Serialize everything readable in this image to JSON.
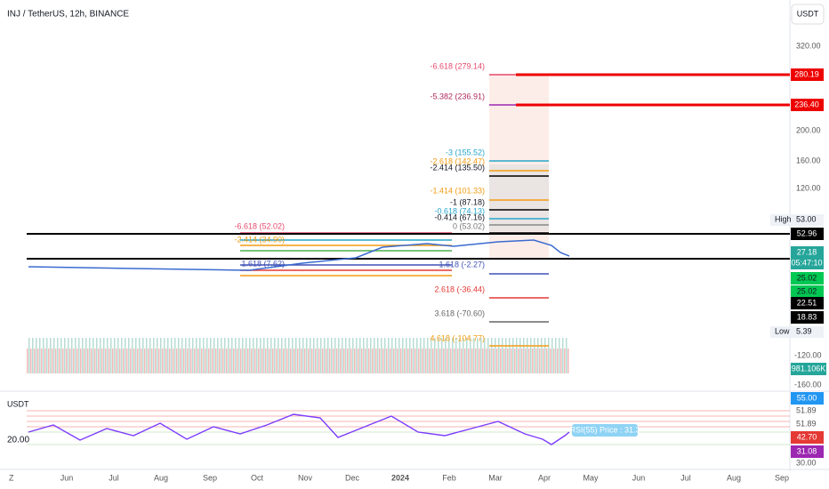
{
  "header": {
    "symbol": "INJ / TetherUS, 12h, BINANCE",
    "currency": "USDT"
  },
  "price_axis": [
    "320.00",
    "200.00",
    "160.00",
    "120.00",
    "-120.00",
    "-160.00"
  ],
  "badges": {
    "b280": "280.19",
    "b236": "236.40",
    "high_label": "High",
    "high": "53.00",
    "b5296": "52.96",
    "last": "27.18",
    "countdown": "05:47:10",
    "g1": "25.02",
    "g2": "25.02",
    "b2251": "22.51",
    "b1883": "18.83",
    "low_label": "Low",
    "low": "5.39",
    "volume": "981.106K"
  },
  "fib_labels": [
    "-6.618 (279.14)",
    "-5.382 (236.91)",
    "-3 (155.52)",
    "-2.618 (142.47)",
    "-2.414 (135.50)",
    "-1.414 (101.33)",
    "-1 (87.18)",
    "-0.618 (74.13)",
    "-0.414 (67.16)",
    "0 (53.02)",
    "1.618 (-2.27)",
    "2.618 (-36.44)",
    "3.618 (-70.60)",
    "4.618 (-104.77)"
  ],
  "left_fib_labels": [
    "-6.618 (52.02)",
    "-2.414 (34.90)",
    "1.618 (7.62)"
  ],
  "rsi": {
    "currency": "USDT",
    "left_tick": "20.00",
    "label": "RSI(55) Price : 31.3",
    "axis": [
      "55.00",
      "51.89",
      "51.89",
      "42.70",
      "31.08",
      "30.00"
    ]
  },
  "time_axis": [
    "Z",
    "Jun",
    "Jul",
    "Aug",
    "Sep",
    "Oct",
    "Nov",
    "Dec",
    "2024",
    "Feb",
    "Mar",
    "Apr",
    "May",
    "Jun",
    "Jul",
    "Aug",
    "Sep"
  ]
}
